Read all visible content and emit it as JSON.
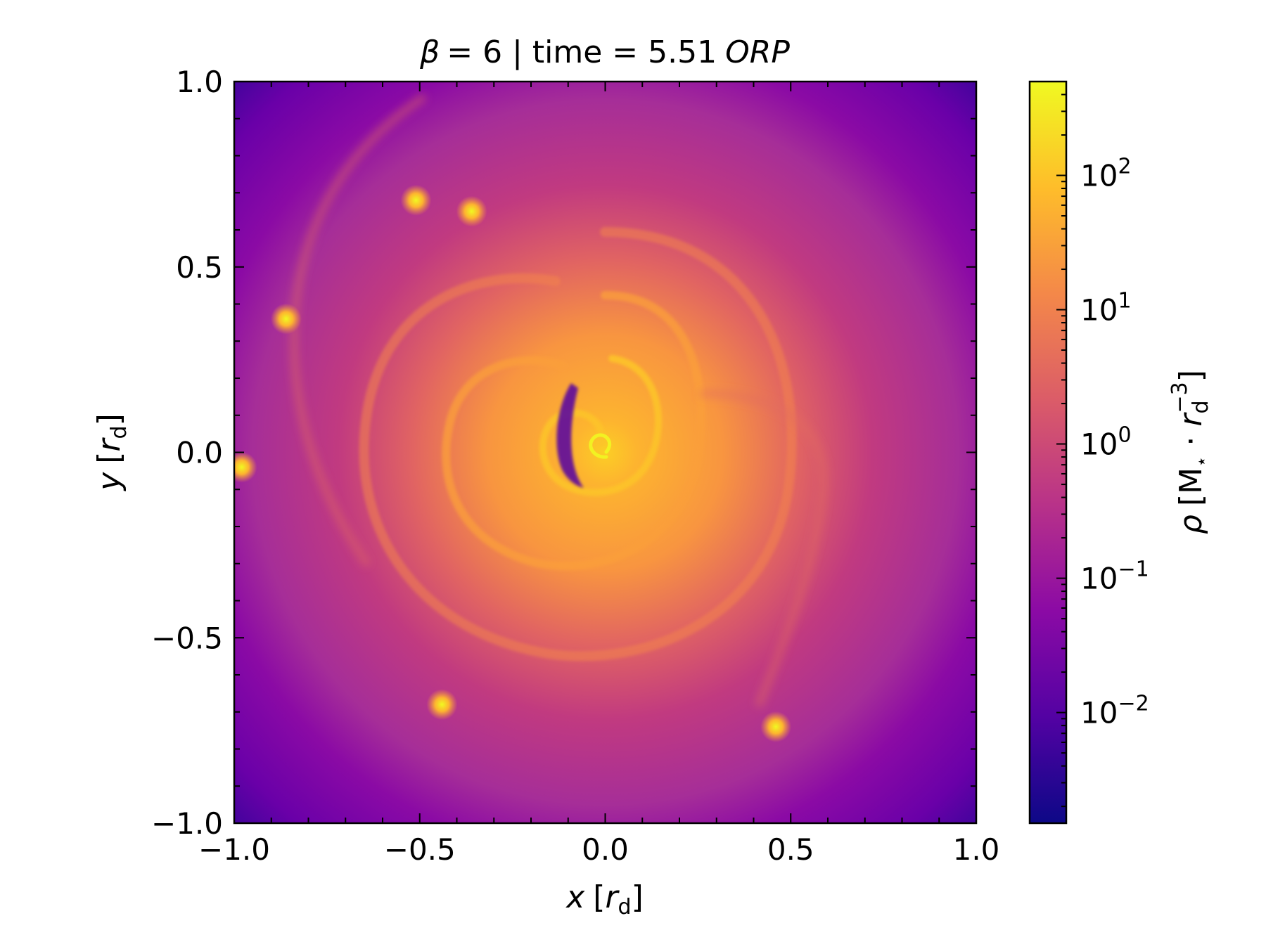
{
  "chart_data": {
    "type": "heatmap",
    "title": {
      "beta_symbol": "β",
      "beta_value": "= 6 | time = 5.51",
      "unit": "ORP"
    },
    "field": "gas density (log color scale), spiral disc with clumps",
    "colormap": "plasma",
    "colormap_stops": [
      "#0d0887",
      "#5302a3",
      "#8b0aa5",
      "#b83289",
      "#db5c68",
      "#f48849",
      "#febd2a",
      "#f0f921"
    ],
    "xlabel": {
      "var": "x",
      "bracket_open": "[",
      "sym": "r",
      "sub": "d",
      "bracket_close": "]"
    },
    "ylabel": {
      "var": "y",
      "bracket_open": "[",
      "sym": "r",
      "sub": "d",
      "bracket_close": "]"
    },
    "xlim": [
      -1.0,
      1.0
    ],
    "ylim": [
      -1.0,
      1.0
    ],
    "x_ticks": [
      {
        "value": -1.0,
        "label": "−1.0"
      },
      {
        "value": -0.5,
        "label": "−0.5"
      },
      {
        "value": 0.0,
        "label": "0.0"
      },
      {
        "value": 0.5,
        "label": "0.5"
      },
      {
        "value": 1.0,
        "label": "1.0"
      }
    ],
    "y_ticks": [
      {
        "value": -1.0,
        "label": "−1.0"
      },
      {
        "value": -0.5,
        "label": "−0.5"
      },
      {
        "value": 0.0,
        "label": "0.0"
      },
      {
        "value": 0.5,
        "label": "0.5"
      },
      {
        "value": 1.0,
        "label": "1.0"
      }
    ],
    "colorbar": {
      "scale": "log",
      "range": [
        0.0015,
        500
      ],
      "ticks": [
        {
          "value": 0.01,
          "base": "10",
          "exp": "−2"
        },
        {
          "value": 0.1,
          "base": "10",
          "exp": "−1"
        },
        {
          "value": 1,
          "base": "10",
          "exp": "0"
        },
        {
          "value": 10,
          "base": "10",
          "exp": "1"
        },
        {
          "value": 100,
          "base": "10",
          "exp": "2"
        }
      ],
      "label": {
        "var": "ρ",
        "bracket_open": "[",
        "mass": "M",
        "star": "⋆",
        "dot": " · ",
        "sym": "r",
        "sub": "d",
        "sup": "−3",
        "bracket_close": "]"
      }
    },
    "clumps": [
      {
        "x": -0.86,
        "y": 0.36
      },
      {
        "x": -0.51,
        "y": 0.68
      },
      {
        "x": -0.36,
        "y": 0.65
      },
      {
        "x": -0.44,
        "y": -0.68
      },
      {
        "x": 0.46,
        "y": -0.74
      },
      {
        "x": -0.98,
        "y": -0.04
      }
    ]
  }
}
